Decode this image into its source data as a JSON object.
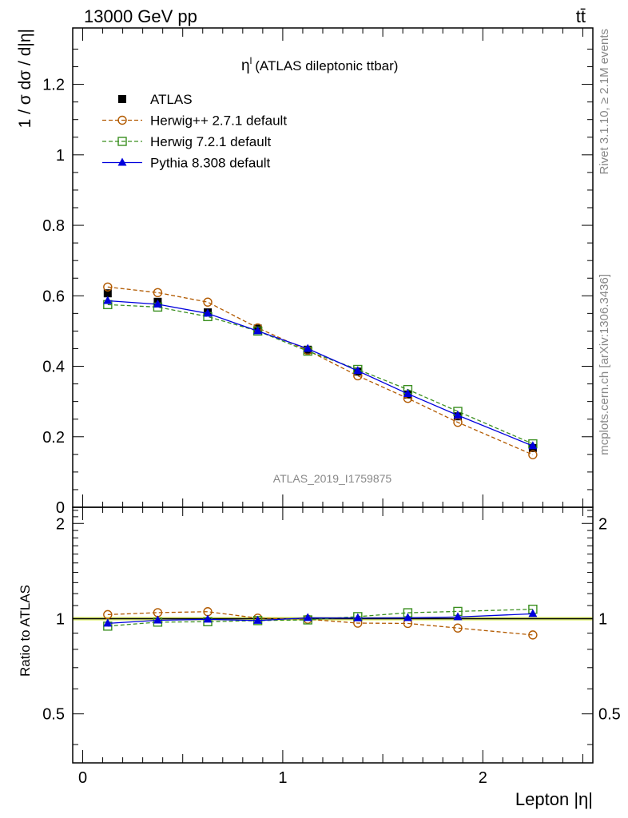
{
  "header": {
    "left": "13000 GeV pp",
    "right": "tt̄"
  },
  "side": {
    "top": "Rivet 3.1.10, ≥ 2.1M events",
    "bottom": "mcplots.cern.ch [arXiv:1306.3436]"
  },
  "chart_data": [
    {
      "type": "scatter",
      "title": "η (ATLAS dileptonic ttbar)",
      "title_superscript": "l",
      "ylabel": "1 / σ  dσ / d|η|",
      "xlabel": "Lepton |η|",
      "watermark": "ATLAS_2019_I1759875",
      "xlim": [
        -0.05,
        2.55
      ],
      "ylim": [
        0,
        1.36
      ],
      "yticks": [
        0,
        0.2,
        0.4,
        0.6,
        0.8,
        1,
        1.2
      ],
      "ytick_labels": [
        "0",
        "0.2",
        "0.4",
        "0.6",
        "0.8",
        "1",
        "1.2"
      ],
      "xticks": [
        0,
        1,
        2
      ],
      "xtick_labels": [
        "0",
        "1",
        "2"
      ],
      "x": [
        0.125,
        0.375,
        0.625,
        0.875,
        1.125,
        1.375,
        1.625,
        1.875,
        2.25
      ],
      "legend_position": "top-left",
      "series": [
        {
          "name": "ATLAS",
          "marker": "square",
          "color": "#000000",
          "line": "none",
          "values": [
            0.607,
            0.583,
            0.553,
            0.507,
            0.447,
            0.385,
            0.32,
            0.258,
            0.168
          ]
        },
        {
          "name": "Herwig++ 2.7.1 default",
          "marker": "circle-open",
          "color": "#b25a00",
          "line": "dashed",
          "values": [
            0.625,
            0.609,
            0.582,
            0.509,
            0.445,
            0.373,
            0.309,
            0.241,
            0.149
          ]
        },
        {
          "name": "Herwig 7.2.1 default",
          "marker": "square-open",
          "color": "#3a8f1f",
          "line": "dashed",
          "values": [
            0.575,
            0.568,
            0.541,
            0.5,
            0.443,
            0.391,
            0.334,
            0.272,
            0.18
          ]
        },
        {
          "name": "Pythia 8.308 default",
          "marker": "triangle",
          "color": "#0000dd",
          "line": "solid",
          "values": [
            0.586,
            0.576,
            0.55,
            0.5,
            0.45,
            0.387,
            0.322,
            0.261,
            0.174
          ]
        }
      ]
    },
    {
      "type": "scatter",
      "ylabel": "Ratio to ATLAS",
      "xlim": [
        -0.05,
        2.55
      ],
      "ylim": [
        0.35,
        2.25
      ],
      "yticks": [
        0.5,
        1,
        2
      ],
      "ytick_labels": [
        "0.5",
        "1",
        "2"
      ],
      "band_color": "#e0f07a",
      "x": [
        0.125,
        0.375,
        0.625,
        0.875,
        1.125,
        1.375,
        1.625,
        1.875,
        2.25
      ],
      "series": [
        {
          "name": "Herwig++ 2.7.1 default",
          "marker": "circle-open",
          "color": "#b25a00",
          "line": "dashed",
          "values": [
            1.03,
            1.045,
            1.052,
            1.004,
            0.996,
            0.968,
            0.966,
            0.934,
            0.888
          ]
        },
        {
          "name": "Herwig 7.2.1 default",
          "marker": "square-open",
          "color": "#3a8f1f",
          "line": "dashed",
          "values": [
            0.947,
            0.975,
            0.978,
            0.986,
            0.991,
            1.015,
            1.044,
            1.054,
            1.071
          ]
        },
        {
          "name": "Pythia 8.308 default",
          "marker": "triangle",
          "color": "#0000dd",
          "line": "solid",
          "values": [
            0.966,
            0.988,
            0.995,
            0.986,
            1.006,
            1.005,
            1.006,
            1.012,
            1.036
          ]
        }
      ]
    }
  ]
}
